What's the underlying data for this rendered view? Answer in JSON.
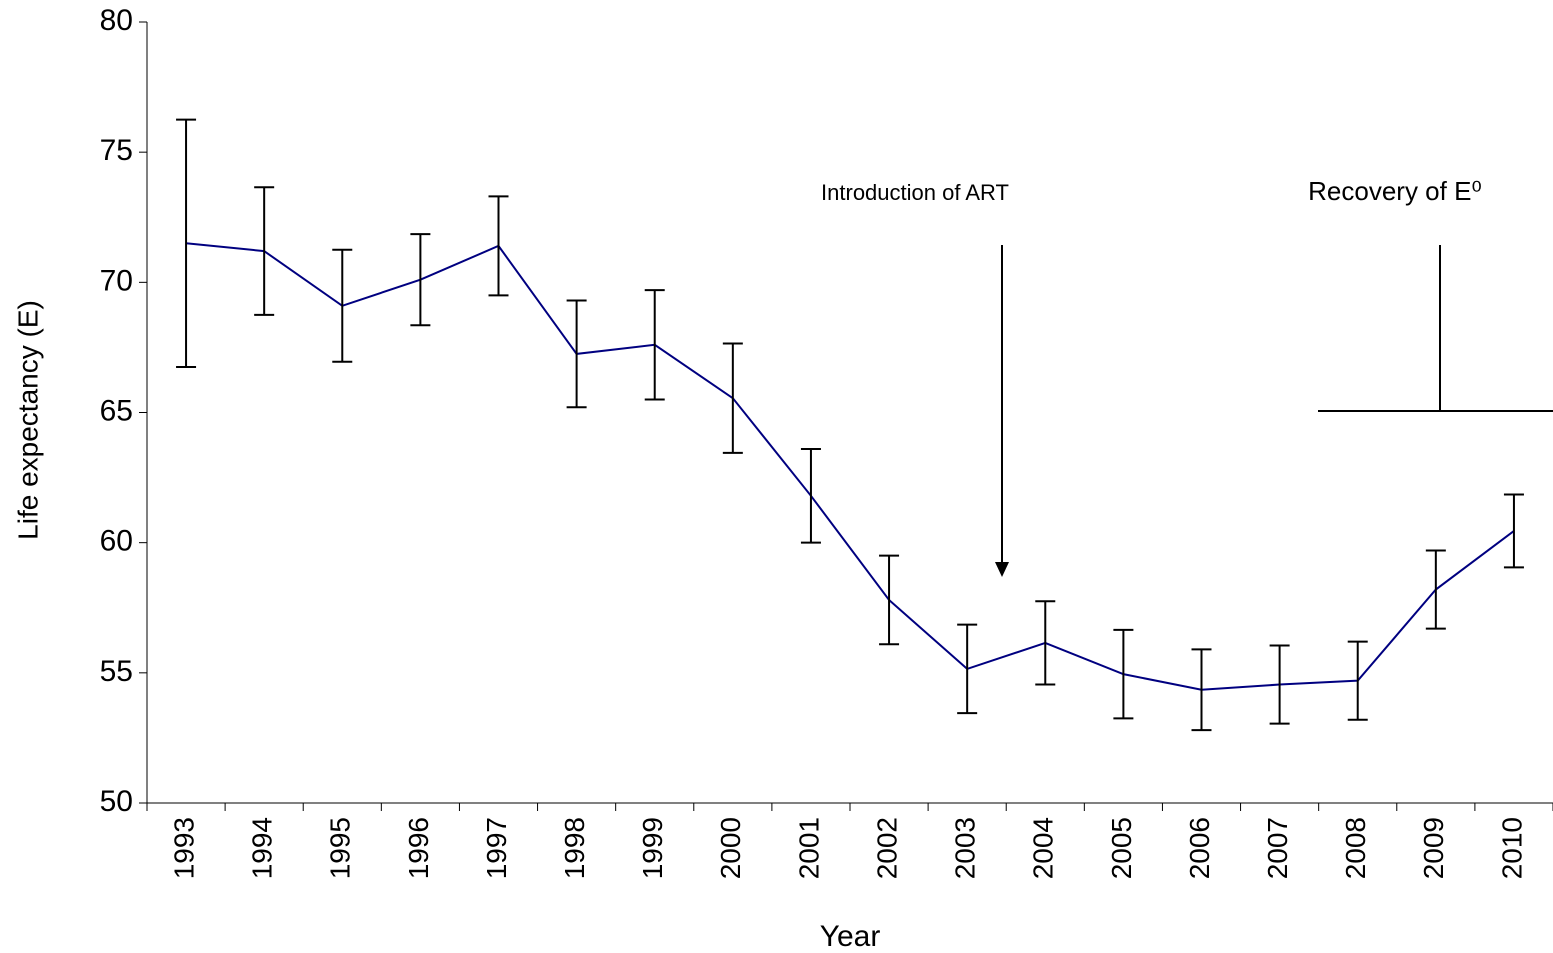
{
  "chart_data": {
    "type": "line",
    "y_label": "Life expectancy (E)",
    "x_label": "Year",
    "categories": [
      "1993",
      "1994",
      "1995",
      "1996",
      "1997",
      "1998",
      "1999",
      "2000",
      "2001",
      "2002",
      "2003",
      "2004",
      "2005",
      "2006",
      "2007",
      "2008",
      "2009",
      "2010"
    ],
    "values": [
      71.5,
      71.2,
      69.1,
      70.1,
      71.4,
      67.25,
      67.6,
      65.55,
      61.8,
      57.8,
      55.15,
      56.15,
      54.95,
      54.35,
      54.55,
      54.7,
      58.2,
      60.45
    ],
    "errors": [
      4.75,
      2.45,
      2.15,
      1.75,
      1.9,
      2.05,
      2.1,
      2.1,
      1.8,
      1.7,
      1.7,
      1.6,
      1.7,
      1.55,
      1.5,
      1.5,
      1.5,
      1.4
    ],
    "color": "#000080",
    "ylim": [
      50,
      80
    ],
    "yticks": [
      50,
      55,
      60,
      65,
      70,
      75,
      80
    ],
    "annotations": [
      "Introduction of ART",
      "Recovery of E⁰"
    ]
  }
}
